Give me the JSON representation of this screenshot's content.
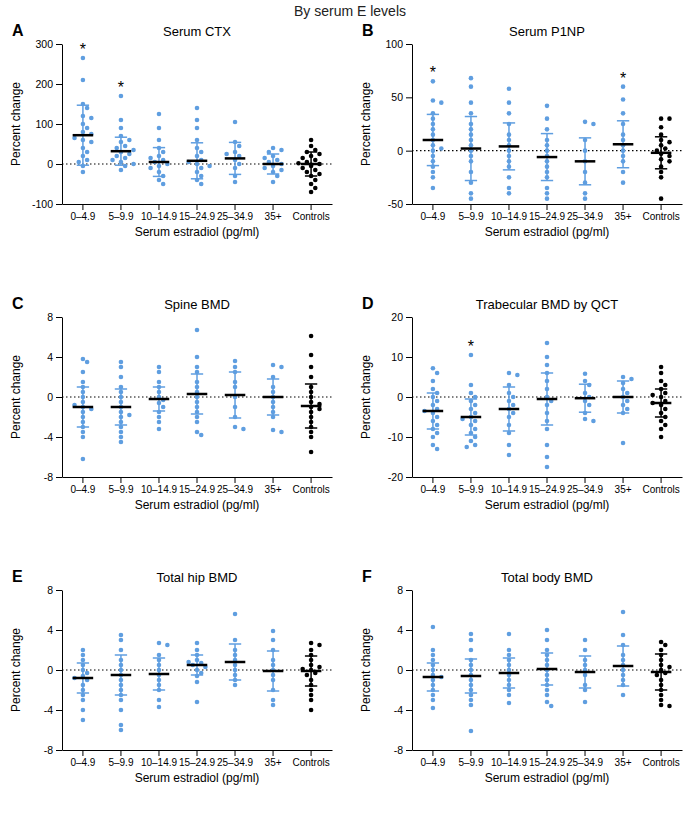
{
  "title": "By serum E levels",
  "chart_data": [
    {
      "type": "scatter",
      "panel": "A",
      "title": "Serum CTX",
      "x_label": "Serum estradiol (pg/ml)",
      "y_label": "Percent change",
      "categories": [
        "0–4.9",
        "5–9.9",
        "10–14.9",
        "15–24.9",
        "25–34.9",
        "35+",
        "Controls"
      ],
      "colors": [
        "#5f9ee0",
        "#5f9ee0",
        "#5f9ee0",
        "#5f9ee0",
        "#5f9ee0",
        "#5f9ee0",
        "#000000"
      ],
      "values": [
        [
          265,
          210,
          150,
          140,
          120,
          100,
          90,
          80,
          75,
          60,
          55,
          40,
          30,
          20,
          10,
          5,
          -5,
          -20,
          115,
          65
        ],
        [
          170,
          110,
          90,
          70,
          55,
          45,
          40,
          30,
          25,
          20,
          15,
          10,
          5,
          -5,
          -15,
          35,
          60,
          0
        ],
        [
          125,
          90,
          60,
          40,
          20,
          10,
          5,
          0,
          -5,
          -10,
          -20,
          -30,
          -40,
          -50,
          15,
          30
        ],
        [
          140,
          110,
          90,
          60,
          40,
          20,
          10,
          0,
          -10,
          -20,
          -30,
          -40,
          -50,
          5,
          -5,
          30
        ],
        [
          105,
          55,
          45,
          30,
          20,
          10,
          0,
          -10,
          -30,
          -45,
          25
        ],
        [
          40,
          35,
          30,
          20,
          10,
          5,
          0,
          -5,
          -10,
          -20,
          -30,
          -45,
          15,
          -15
        ],
        [
          60,
          45,
          35,
          30,
          25,
          20,
          15,
          10,
          5,
          0,
          -5,
          -10,
          -15,
          -20,
          -25,
          -30,
          -40,
          -50,
          -60,
          -70,
          2,
          -2
        ]
      ],
      "means": [
        72,
        32,
        5,
        8,
        14,
        0,
        0
      ],
      "sd": [
        75,
        35,
        36,
        45,
        40,
        25,
        30
      ],
      "significance": [
        "*",
        "*",
        null,
        null,
        null,
        null,
        null
      ],
      "baseline": 0,
      "ylim": [
        -100,
        300
      ],
      "yticks": [
        -100,
        0,
        100,
        200,
        300
      ]
    },
    {
      "type": "scatter",
      "panel": "B",
      "title": "Serum P1NP",
      "x_label": "Serum estradiol (pg/ml)",
      "y_label": "Percent change",
      "categories": [
        "0–4.9",
        "5–9.9",
        "10–14.9",
        "15–24.9",
        "25–34.9",
        "35+",
        "Controls"
      ],
      "colors": [
        "#5f9ee0",
        "#5f9ee0",
        "#5f9ee0",
        "#5f9ee0",
        "#5f9ee0",
        "#5f9ee0",
        "#000000"
      ],
      "values": [
        [
          65,
          47,
          45,
          35,
          30,
          20,
          15,
          10,
          5,
          0,
          -5,
          -10,
          -15,
          -20,
          -25,
          -35,
          25,
          2
        ],
        [
          68,
          60,
          45,
          35,
          25,
          15,
          10,
          5,
          0,
          -5,
          -10,
          -20,
          -30,
          -40,
          -45,
          20
        ],
        [
          58,
          45,
          35,
          25,
          15,
          10,
          5,
          0,
          -5,
          -10,
          -15,
          -25,
          -35,
          -40
        ],
        [
          42,
          30,
          20,
          10,
          5,
          0,
          -5,
          -10,
          -15,
          -20,
          -25,
          -35,
          -40,
          -45
        ],
        [
          27,
          25,
          10,
          0,
          -10,
          -20,
          -30,
          -40,
          -45
        ],
        [
          60,
          48,
          35,
          25,
          15,
          10,
          5,
          0,
          -5,
          -10,
          -20,
          -30
        ],
        [
          30,
          30,
          22,
          15,
          10,
          8,
          5,
          2,
          0,
          -3,
          -5,
          -8,
          -10,
          -15,
          -20,
          -25,
          -45
        ]
      ],
      "means": [
        10,
        2,
        4,
        -6,
        -10,
        6,
        -2
      ],
      "sd": [
        24,
        30,
        22,
        22,
        22,
        22,
        15
      ],
      "significance": [
        "*",
        null,
        null,
        null,
        null,
        "*",
        null
      ],
      "baseline": 0,
      "ylim": [
        -50,
        100
      ],
      "yticks": [
        -50,
        0,
        50,
        100
      ]
    },
    {
      "type": "scatter",
      "panel": "C",
      "title": "Spine BMD",
      "x_label": "Serum estradiol (pg/ml)",
      "y_label": "Percent change",
      "categories": [
        "0–4.9",
        "5–9.9",
        "10–14.9",
        "15–24.9",
        "25–34.9",
        "35+",
        "Controls"
      ],
      "colors": [
        "#5f9ee0",
        "#5f9ee0",
        "#5f9ee0",
        "#5f9ee0",
        "#5f9ee0",
        "#5f9ee0",
        "#000000"
      ],
      "values": [
        [
          3.8,
          3.5,
          2.5,
          1.5,
          1.0,
          0.5,
          0,
          -0.5,
          -1,
          -1.5,
          -2,
          -2.5,
          -3,
          -3.5,
          -4,
          -6.2,
          -1.2,
          -0.8
        ],
        [
          3.5,
          3.0,
          2.0,
          1.0,
          0.5,
          0,
          -0.5,
          -1,
          -1.5,
          -2,
          -2.5,
          -3,
          -3.5,
          -4.5,
          -4.0,
          -1.8
        ],
        [
          3.0,
          2.5,
          1.5,
          1.0,
          0.5,
          0,
          -0.3,
          -0.6,
          -1,
          -1.5,
          -2,
          -2.5,
          -3.2
        ],
        [
          6.7,
          4.0,
          3.0,
          2.5,
          1.5,
          1.0,
          0.5,
          0,
          -0.5,
          -1,
          -1.5,
          -2,
          -2.5,
          -3.5,
          -3.8
        ],
        [
          3.6,
          3.0,
          2.5,
          1.5,
          1.0,
          0,
          -1.0,
          -2.0,
          -3.0,
          -3.2
        ],
        [
          3.2,
          3.0,
          2.0,
          1.0,
          0.5,
          0,
          -0.5,
          -1,
          -1.5,
          -2,
          -3.3,
          -3.5
        ],
        [
          6.1,
          4.2,
          3.0,
          2.0,
          1.0,
          0.5,
          0,
          -0.5,
          -1,
          -1.5,
          -2,
          -2.5,
          -3,
          -3.5,
          -4,
          -5.5,
          -1.2,
          -0.7
        ]
      ],
      "means": [
        -1.0,
        -1.0,
        -0.2,
        0.3,
        0.2,
        0,
        -0.9
      ],
      "sd": [
        2.0,
        1.8,
        1.2,
        2.0,
        2.3,
        1.8,
        2.2
      ],
      "significance": [
        null,
        null,
        null,
        null,
        null,
        null,
        null
      ],
      "baseline": 0,
      "ylim": [
        -8,
        8
      ],
      "yticks": [
        -8,
        -4,
        0,
        4,
        8
      ]
    },
    {
      "type": "scatter",
      "panel": "D",
      "title": "Trabecular BMD by QCT",
      "x_label": "Serum estradiol (pg/ml)",
      "y_label": "Percent change",
      "categories": [
        "0–4.9",
        "5–9.9",
        "10–14.9",
        "15–24.9",
        "25–34.9",
        "35+",
        "Controls"
      ],
      "colors": [
        "#5f9ee0",
        "#5f9ee0",
        "#5f9ee0",
        "#5f9ee0",
        "#5f9ee0",
        "#5f9ee0",
        "#000000"
      ],
      "values": [
        [
          7.2,
          6,
          4,
          2,
          1,
          0,
          -1,
          -2,
          -3,
          -4,
          -5,
          -6,
          -7,
          -8,
          -9,
          -10,
          -12,
          -13,
          -3.5
        ],
        [
          10.5,
          3,
          1,
          0,
          -1,
          -2,
          -3,
          -4,
          -5,
          -6,
          -7,
          -8,
          -9,
          -10,
          -11,
          -12,
          -12.5,
          -5.5
        ],
        [
          6,
          5.5,
          3,
          1,
          0,
          -1,
          -2,
          -3,
          -4,
          -5,
          -7,
          -9,
          -12,
          -14.5
        ],
        [
          13.5,
          10,
          8,
          6,
          4,
          2,
          0,
          -1,
          -2,
          -4,
          -6,
          -8,
          -12,
          -15,
          -17.5
        ],
        [
          5.8,
          4,
          3,
          1,
          0,
          -1,
          -2,
          -4,
          -5.5,
          -6
        ],
        [
          5,
          4.5,
          3.5,
          2,
          1,
          0,
          -1,
          -2,
          -3,
          -4,
          -11.5
        ],
        [
          7.5,
          6,
          4,
          3,
          2,
          1,
          0,
          -1,
          -2,
          -3,
          -4,
          -5,
          -6,
          -7,
          -8,
          -10,
          -1.5,
          0.5
        ]
      ],
      "means": [
        -3.5,
        -5,
        -3,
        -0.5,
        -0.3,
        0,
        -1.5
      ],
      "sd": [
        4.5,
        4.5,
        5.5,
        6.5,
        3.5,
        4,
        3.5
      ],
      "significance": [
        null,
        "*",
        null,
        null,
        null,
        null,
        null
      ],
      "baseline": 0,
      "ylim": [
        -20,
        20
      ],
      "yticks": [
        -20,
        -10,
        0,
        10,
        20
      ]
    },
    {
      "type": "scatter",
      "panel": "E",
      "title": "Total hip BMD",
      "x_label": "Serum estradiol (pg/ml)",
      "y_label": "Percent change",
      "categories": [
        "0–4.9",
        "5–9.9",
        "10–14.9",
        "15–24.9",
        "25–34.9",
        "35+",
        "Controls"
      ],
      "colors": [
        "#5f9ee0",
        "#5f9ee0",
        "#5f9ee0",
        "#5f9ee0",
        "#5f9ee0",
        "#5f9ee0",
        "#000000"
      ],
      "values": [
        [
          2.0,
          1.5,
          1.0,
          0.5,
          0,
          -0.3,
          -0.6,
          -1,
          -1.5,
          -2,
          -2.5,
          -3,
          -4,
          -5,
          -0.8
        ],
        [
          3.5,
          3.0,
          2.0,
          1.0,
          0.5,
          0,
          -0.5,
          -1,
          -1.5,
          -2,
          -2.5,
          -3,
          -4,
          -5.5,
          -6
        ],
        [
          2.7,
          2.5,
          1.5,
          1.0,
          0.5,
          0,
          -0.5,
          -1,
          -1.5,
          -2,
          -3,
          -3.7
        ],
        [
          2.7,
          2.0,
          1.5,
          1.0,
          0.7,
          0.5,
          0.3,
          0,
          -0.3,
          -0.6,
          -1.2,
          -3.2,
          0.8
        ],
        [
          5.6,
          3.0,
          2.0,
          1.5,
          1.0,
          0.5,
          0,
          -0.5,
          -1.0,
          -1.5
        ],
        [
          3.9,
          3.0,
          2.0,
          1.0,
          0.5,
          0,
          -0.5,
          -1,
          -2,
          -3,
          -3.5
        ],
        [
          2.7,
          2.5,
          2.0,
          1.5,
          1.0,
          0.5,
          0.3,
          0,
          -0.3,
          -0.5,
          -1,
          -1.5,
          -2,
          -2.5,
          -3,
          -4,
          0.1
        ]
      ],
      "means": [
        -0.8,
        -0.5,
        -0.4,
        0.5,
        0.8,
        -0.1,
        -0.1
      ],
      "sd": [
        1.5,
        2.0,
        1.6,
        1.0,
        1.8,
        2.0,
        1.5
      ],
      "significance": [
        null,
        null,
        null,
        null,
        null,
        null,
        null
      ],
      "baseline": 0,
      "ylim": [
        -8,
        8
      ],
      "yticks": [
        -8,
        -4,
        0,
        4,
        8
      ]
    },
    {
      "type": "scatter",
      "panel": "F",
      "title": "Total body BMD",
      "x_label": "Serum estradiol (pg/ml)",
      "y_label": "Percent change",
      "categories": [
        "0–4.9",
        "5–9.9",
        "10–14.9",
        "15–24.9",
        "25–34.9",
        "35+",
        "Controls"
      ],
      "colors": [
        "#5f9ee0",
        "#5f9ee0",
        "#5f9ee0",
        "#5f9ee0",
        "#5f9ee0",
        "#5f9ee0",
        "#000000"
      ],
      "values": [
        [
          4.3,
          2.0,
          1.5,
          1.0,
          0.5,
          0,
          -0.5,
          -1,
          -1.5,
          -2,
          -2.5,
          -3,
          -3.8,
          -0.7
        ],
        [
          3.6,
          3.0,
          2.0,
          1.0,
          0.5,
          0,
          -0.5,
          -1,
          -1.5,
          -2,
          -2.5,
          -3,
          -3.5,
          -6.1
        ],
        [
          3.6,
          2.0,
          1.5,
          1.0,
          0.5,
          0,
          -0.5,
          -1,
          -1.5,
          -2,
          -2.5,
          -3.3
        ],
        [
          4.0,
          3.0,
          2.0,
          1.5,
          1.0,
          0.5,
          0,
          -0.5,
          -1,
          -1.5,
          -2,
          -2.5,
          -3.2,
          -3.6
        ],
        [
          3.0,
          2.0,
          1.0,
          0.5,
          0,
          -0.5,
          -1.5,
          -2.0,
          -3.2
        ],
        [
          5.8,
          3.5,
          2.5,
          1.5,
          1.0,
          0.5,
          0,
          -0.5,
          -1.0,
          -1.5,
          -2.5
        ],
        [
          2.8,
          2.5,
          2.0,
          1.5,
          1.0,
          0.5,
          0.3,
          0,
          -0.3,
          -0.5,
          -1,
          -1.5,
          -2,
          -2.5,
          -3,
          -3.5,
          -3.6
        ]
      ],
      "means": [
        -0.7,
        -0.6,
        -0.3,
        0.1,
        -0.2,
        0.4,
        -0.2
      ],
      "sd": [
        1.4,
        1.7,
        1.5,
        1.6,
        1.6,
        2.0,
        1.8
      ],
      "significance": [
        null,
        null,
        null,
        null,
        null,
        null,
        null
      ],
      "baseline": 0,
      "ylim": [
        -8,
        8
      ],
      "yticks": [
        -8,
        -4,
        0,
        4,
        8
      ]
    }
  ]
}
